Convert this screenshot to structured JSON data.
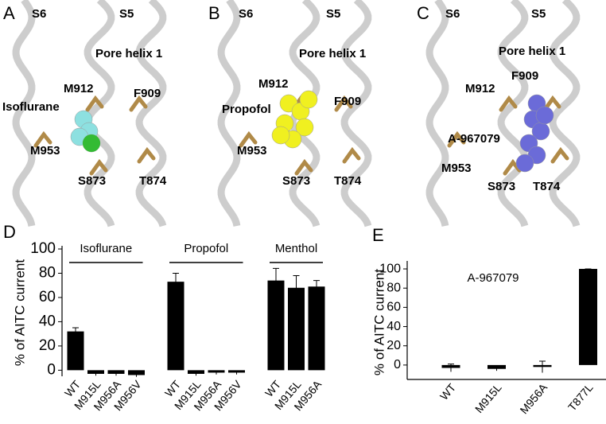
{
  "structure_panels": [
    {
      "letter": "A",
      "labels": [
        "S6",
        "S5",
        "Pore helix 1",
        "M912",
        "F909",
        "Isoflurane",
        "M953",
        "S873",
        "T874"
      ]
    },
    {
      "letter": "B",
      "labels": [
        "S6",
        "S5",
        "Pore helix 1",
        "M912",
        "F909",
        "Propofol",
        "M953",
        "S873",
        "T874"
      ]
    },
    {
      "letter": "C",
      "labels": [
        "S6",
        "S5",
        "Pore helix 1",
        "F909",
        "M912",
        "A-967079",
        "M953",
        "S873",
        "T874"
      ]
    }
  ],
  "chart_data": [
    {
      "type": "bar",
      "panel": "D",
      "y_label": "% of AITC current",
      "color": "#000000",
      "ylim": [
        -5,
        100
      ],
      "yticks": [
        0,
        20,
        40,
        60,
        80,
        100
      ],
      "groups": [
        {
          "name": "Isoflurane",
          "categories": [
            "WT",
            "M915L",
            "M956A",
            "M956V"
          ],
          "values": [
            32,
            -3,
            -3,
            -4
          ],
          "errors": [
            3,
            1.5,
            1.5,
            1.5
          ]
        },
        {
          "name": "Propofol",
          "categories": [
            "WT",
            "M915L",
            "M956A",
            "M956V"
          ],
          "values": [
            73,
            -3,
            -2,
            -2
          ],
          "errors": [
            7,
            1.5,
            1.5,
            1.5
          ]
        },
        {
          "name": "Menthol",
          "categories": [
            "WT",
            "M915L",
            "M956A"
          ],
          "values": [
            74,
            68,
            69
          ],
          "errors": [
            10,
            10,
            5
          ]
        }
      ]
    },
    {
      "type": "bar",
      "panel": "E",
      "y_label": "% of AITC current",
      "annotation": "A-967079",
      "color": "#000000",
      "ylim": [
        -15,
        105
      ],
      "yticks": [
        0,
        20,
        40,
        60,
        80,
        100
      ],
      "categories": [
        "WT",
        "M915L",
        "M956A",
        "T877L"
      ],
      "values": [
        -3,
        -4,
        -2,
        100
      ],
      "errors": [
        4,
        2,
        6,
        0
      ]
    }
  ]
}
